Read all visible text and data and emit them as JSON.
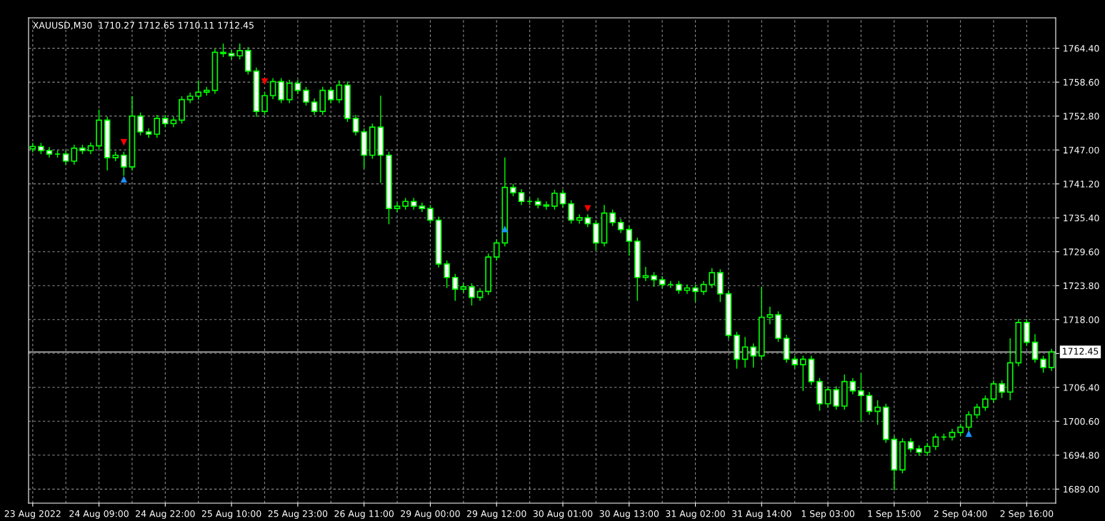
{
  "chart_data": {
    "type": "candlestick",
    "title": "XAUUSD,M30  1710.27 1712.65 1710.11 1712.45",
    "categories": [
      "23 Aug 2022",
      null,
      null,
      null,
      null,
      null,
      null,
      null,
      "24 Aug 09:00",
      null,
      null,
      null,
      null,
      null,
      null,
      null,
      "24 Aug 22:00",
      null,
      null,
      null,
      null,
      null,
      null,
      null,
      "25 Aug 10:00",
      null,
      null,
      null,
      null,
      null,
      null,
      null,
      "25 Aug 23:00",
      null,
      null,
      null,
      null,
      null,
      null,
      null,
      "26 Aug 11:00",
      null,
      null,
      null,
      null,
      null,
      null,
      null,
      "29 Aug 00:00",
      null,
      null,
      null,
      null,
      null,
      null,
      null,
      "29 Aug 12:00",
      null,
      null,
      null,
      null,
      null,
      null,
      null,
      "30 Aug 01:00",
      null,
      null,
      null,
      null,
      null,
      null,
      null,
      "30 Aug 13:00",
      null,
      null,
      null,
      null,
      null,
      null,
      null,
      "31 Aug 02:00",
      null,
      null,
      null,
      null,
      null,
      null,
      null,
      "31 Aug 14:00",
      null,
      null,
      null,
      null,
      null,
      null,
      null,
      "1 Sep 03:00",
      null,
      null,
      null,
      null,
      null,
      null,
      null,
      "1 Sep 15:00",
      null,
      null,
      null,
      null,
      null,
      null,
      null,
      "2 Sep 04:00",
      null,
      null,
      null,
      null,
      null,
      null,
      null,
      "2 Sep 16:00",
      null,
      null,
      null
    ],
    "series": [
      {
        "color": "#00ff00",
        "ohlc": [
          [
            1747.2,
            1748.2,
            1746.6,
            1747.6
          ],
          [
            1747.6,
            1748.2,
            1746.3,
            1746.9
          ],
          [
            1746.9,
            1747.5,
            1745.7,
            1746.3
          ],
          [
            1746.3,
            1746.9,
            1745.7,
            1746.3
          ],
          [
            1746.3,
            1746.9,
            1744.5,
            1745.1
          ],
          [
            1745.1,
            1747.9,
            1744.5,
            1747.3
          ],
          [
            1747.3,
            1747.9,
            1746.3,
            1746.9
          ],
          [
            1746.9,
            1748.3,
            1746.3,
            1747.7
          ],
          [
            1747.7,
            1753.9,
            1747.1,
            1752.1
          ],
          [
            1752.1,
            1752.7,
            1743.5,
            1745.7
          ],
          [
            1745.7,
            1746.7,
            1745.1,
            1746.1
          ],
          [
            1746.1,
            1746.7,
            1742.6,
            1744.1
          ],
          [
            1744.1,
            1756.2,
            1743.5,
            1752.8
          ],
          [
            1752.8,
            1753.4,
            1749.5,
            1750.1
          ],
          [
            1750.1,
            1750.7,
            1749.1,
            1749.7
          ],
          [
            1749.7,
            1753.0,
            1749.1,
            1752.4
          ],
          [
            1752.4,
            1753.0,
            1750.9,
            1751.5
          ],
          [
            1751.5,
            1752.7,
            1750.9,
            1752.1
          ],
          [
            1752.1,
            1756.2,
            1751.5,
            1755.6
          ],
          [
            1755.6,
            1756.8,
            1755.0,
            1756.2
          ],
          [
            1756.2,
            1758.9,
            1755.6,
            1756.9
          ],
          [
            1756.9,
            1757.8,
            1756.3,
            1757.2
          ],
          [
            1757.2,
            1764.3,
            1756.6,
            1763.7
          ],
          [
            1763.7,
            1765.2,
            1762.9,
            1763.5
          ],
          [
            1763.5,
            1764.1,
            1762.5,
            1763.1
          ],
          [
            1763.1,
            1765.2,
            1762.5,
            1764.0
          ],
          [
            1764.0,
            1764.6,
            1759.9,
            1760.5
          ],
          [
            1760.5,
            1761.1,
            1752.7,
            1753.6
          ],
          [
            1753.6,
            1756.9,
            1753.0,
            1756.3
          ],
          [
            1756.3,
            1759.3,
            1755.7,
            1758.7
          ],
          [
            1758.7,
            1759.3,
            1755.0,
            1755.6
          ],
          [
            1755.6,
            1759.0,
            1755.0,
            1758.4
          ],
          [
            1758.4,
            1759.0,
            1756.6,
            1757.2
          ],
          [
            1757.2,
            1757.8,
            1754.6,
            1755.2
          ],
          [
            1755.2,
            1755.8,
            1753.0,
            1753.6
          ],
          [
            1753.6,
            1757.8,
            1753.0,
            1757.2
          ],
          [
            1757.2,
            1757.8,
            1755.0,
            1755.6
          ],
          [
            1755.6,
            1758.9,
            1755.0,
            1758.1
          ],
          [
            1758.1,
            1758.7,
            1751.8,
            1752.4
          ],
          [
            1752.4,
            1753.0,
            1749.5,
            1750.1
          ],
          [
            1750.1,
            1750.7,
            1743.8,
            1746.1
          ],
          [
            1746.1,
            1751.5,
            1745.5,
            1750.9
          ],
          [
            1750.9,
            1756.3,
            1741.4,
            1746.1
          ],
          [
            1746.1,
            1746.7,
            1734.3,
            1737.0
          ],
          [
            1737.0,
            1738.0,
            1736.4,
            1737.4
          ],
          [
            1737.4,
            1738.8,
            1736.8,
            1738.2
          ],
          [
            1738.2,
            1738.8,
            1736.8,
            1737.4
          ],
          [
            1737.4,
            1738.0,
            1736.4,
            1737.0
          ],
          [
            1737.0,
            1737.6,
            1734.4,
            1735.0
          ],
          [
            1735.0,
            1735.6,
            1726.9,
            1727.5
          ],
          [
            1727.5,
            1728.1,
            1723.4,
            1725.2
          ],
          [
            1725.2,
            1725.8,
            1721.2,
            1723.2
          ],
          [
            1723.2,
            1724.2,
            1722.6,
            1723.6
          ],
          [
            1723.6,
            1724.2,
            1720.4,
            1721.8
          ],
          [
            1721.8,
            1723.4,
            1721.2,
            1722.8
          ],
          [
            1722.8,
            1729.3,
            1722.2,
            1728.7
          ],
          [
            1728.7,
            1731.7,
            1728.1,
            1731.1
          ],
          [
            1731.1,
            1745.7,
            1730.5,
            1740.6
          ],
          [
            1740.6,
            1741.2,
            1739.1,
            1739.7
          ],
          [
            1739.7,
            1740.3,
            1737.6,
            1738.2
          ],
          [
            1738.2,
            1738.8,
            1737.6,
            1738.2
          ],
          [
            1738.2,
            1738.8,
            1737.0,
            1737.6
          ],
          [
            1737.6,
            1738.2,
            1736.8,
            1737.4
          ],
          [
            1737.4,
            1740.2,
            1736.8,
            1739.6
          ],
          [
            1739.6,
            1740.2,
            1737.2,
            1737.8
          ],
          [
            1737.8,
            1738.4,
            1734.4,
            1735.0
          ],
          [
            1735.0,
            1736.0,
            1734.4,
            1735.4
          ],
          [
            1735.4,
            1736.0,
            1733.8,
            1734.4
          ],
          [
            1734.4,
            1735.0,
            1729.8,
            1731.1
          ],
          [
            1731.1,
            1737.6,
            1730.5,
            1736.2
          ],
          [
            1736.2,
            1736.8,
            1734.0,
            1734.6
          ],
          [
            1734.6,
            1735.2,
            1732.8,
            1733.4
          ],
          [
            1733.4,
            1734.0,
            1729.0,
            1731.4
          ],
          [
            1731.4,
            1732.0,
            1721.2,
            1725.2
          ],
          [
            1725.2,
            1727.0,
            1724.6,
            1725.5
          ],
          [
            1725.5,
            1726.1,
            1723.6,
            1724.8
          ],
          [
            1724.8,
            1725.4,
            1723.4,
            1724.0
          ],
          [
            1724.0,
            1724.6,
            1723.4,
            1724.0
          ],
          [
            1724.0,
            1724.6,
            1722.4,
            1723.0
          ],
          [
            1723.0,
            1724.0,
            1722.4,
            1723.4
          ],
          [
            1723.4,
            1724.0,
            1721.0,
            1722.8
          ],
          [
            1722.8,
            1724.6,
            1722.2,
            1724.0
          ],
          [
            1724.0,
            1726.8,
            1723.4,
            1726.0
          ],
          [
            1726.0,
            1726.6,
            1721.0,
            1722.4
          ],
          [
            1722.4,
            1723.0,
            1714.7,
            1715.3
          ],
          [
            1715.3,
            1715.9,
            1709.6,
            1711.2
          ],
          [
            1711.2,
            1715.0,
            1709.8,
            1713.3
          ],
          [
            1713.3,
            1713.9,
            1709.8,
            1711.8
          ],
          [
            1711.8,
            1723.6,
            1711.2,
            1718.4
          ],
          [
            1718.4,
            1720.2,
            1717.2,
            1718.8
          ],
          [
            1718.8,
            1719.4,
            1714.2,
            1714.8
          ],
          [
            1714.8,
            1715.4,
            1710.6,
            1711.2
          ],
          [
            1711.2,
            1711.8,
            1709.7,
            1710.3
          ],
          [
            1710.3,
            1711.8,
            1705.8,
            1711.2
          ],
          [
            1711.2,
            1711.8,
            1706.8,
            1707.4
          ],
          [
            1707.4,
            1708.0,
            1702.4,
            1703.6
          ],
          [
            1703.6,
            1706.6,
            1703.0,
            1706.0
          ],
          [
            1706.0,
            1706.6,
            1702.6,
            1703.2
          ],
          [
            1703.2,
            1708.6,
            1702.6,
            1707.4
          ],
          [
            1707.4,
            1708.0,
            1705.2,
            1705.8
          ],
          [
            1705.8,
            1708.8,
            1700.6,
            1705.0
          ],
          [
            1705.0,
            1705.6,
            1701.7,
            1702.3
          ],
          [
            1702.3,
            1704.2,
            1700.0,
            1703.0
          ],
          [
            1703.0,
            1703.6,
            1696.9,
            1697.5
          ],
          [
            1697.5,
            1698.1,
            1688.8,
            1692.3
          ],
          [
            1692.3,
            1697.7,
            1691.7,
            1697.1
          ],
          [
            1697.1,
            1697.7,
            1695.3,
            1695.9
          ],
          [
            1695.9,
            1696.5,
            1694.7,
            1695.3
          ],
          [
            1695.3,
            1696.9,
            1694.7,
            1696.3
          ],
          [
            1696.3,
            1698.5,
            1695.7,
            1697.9
          ],
          [
            1697.9,
            1698.5,
            1697.3,
            1697.9
          ],
          [
            1697.9,
            1699.3,
            1697.3,
            1698.7
          ],
          [
            1698.7,
            1700.2,
            1698.1,
            1699.6
          ],
          [
            1699.6,
            1702.3,
            1699.0,
            1701.7
          ],
          [
            1701.7,
            1703.6,
            1701.1,
            1703.0
          ],
          [
            1703.0,
            1705.0,
            1702.4,
            1704.4
          ],
          [
            1704.4,
            1707.6,
            1703.8,
            1707.0
          ],
          [
            1707.0,
            1707.6,
            1704.6,
            1705.6
          ],
          [
            1705.6,
            1714.8,
            1704.2,
            1710.6
          ],
          [
            1710.6,
            1718.1,
            1710.0,
            1717.5
          ],
          [
            1717.5,
            1718.1,
            1713.5,
            1714.1
          ],
          [
            1714.1,
            1715.5,
            1710.6,
            1711.2
          ],
          [
            1711.2,
            1711.8,
            1708.9,
            1709.8
          ],
          [
            1709.8,
            1713.0,
            1709.2,
            1712.45
          ]
        ]
      },
      {
        "type": "scatter",
        "marker": "triangle_down",
        "color": "#ff0000",
        "values": [
          null,
          null,
          null,
          null,
          null,
          null,
          null,
          null,
          null,
          null,
          null,
          1748.3,
          null,
          null,
          null,
          null,
          null,
          null,
          null,
          null,
          null,
          null,
          null,
          null,
          null,
          null,
          null,
          null,
          1758.7,
          null,
          null,
          null,
          null,
          null,
          null,
          null,
          null,
          null,
          null,
          null,
          null,
          null,
          null,
          null,
          null,
          null,
          null,
          null,
          null,
          null,
          null,
          null,
          null,
          null,
          null,
          null,
          null,
          null,
          null,
          null,
          null,
          null,
          null,
          null,
          null,
          null,
          null,
          1737.0,
          null,
          null,
          null,
          null,
          null,
          null,
          null,
          null,
          null,
          null,
          null,
          null,
          null,
          null,
          null,
          null,
          null,
          null,
          null,
          null,
          null,
          null,
          null,
          null,
          null,
          null,
          null,
          null,
          null,
          null,
          null,
          null,
          null,
          null,
          null,
          null,
          null,
          null,
          null,
          null,
          null,
          null,
          null,
          null,
          null,
          null,
          null,
          null,
          null,
          null,
          null,
          null,
          null,
          null,
          null,
          null
        ]
      },
      {
        "type": "scatter",
        "marker": "triangle",
        "color": "#1e90ff",
        "values": [
          null,
          null,
          null,
          null,
          null,
          null,
          null,
          null,
          null,
          null,
          null,
          1742.0,
          null,
          null,
          null,
          null,
          null,
          null,
          null,
          null,
          null,
          null,
          null,
          null,
          null,
          null,
          null,
          null,
          null,
          null,
          null,
          null,
          null,
          null,
          null,
          null,
          null,
          null,
          null,
          null,
          null,
          null,
          null,
          null,
          null,
          null,
          null,
          null,
          null,
          null,
          null,
          null,
          null,
          null,
          null,
          null,
          null,
          1733.5,
          null,
          null,
          null,
          null,
          null,
          null,
          null,
          null,
          null,
          null,
          null,
          null,
          null,
          null,
          null,
          null,
          null,
          null,
          null,
          null,
          null,
          null,
          null,
          null,
          null,
          null,
          null,
          null,
          null,
          null,
          null,
          null,
          null,
          null,
          null,
          null,
          null,
          null,
          null,
          null,
          null,
          null,
          null,
          null,
          null,
          null,
          null,
          null,
          null,
          null,
          null,
          null,
          null,
          null,
          null,
          1698.5,
          null,
          null,
          null,
          null,
          null,
          null,
          null,
          null,
          null,
          null
        ]
      }
    ],
    "ylim": [
      1686.6,
      1769.6
    ],
    "yticks": [
      {
        "value": 1689.0,
        "label": "1689.00"
      },
      {
        "value": 1694.8,
        "label": "1694.80"
      },
      {
        "value": 1700.6,
        "label": "1700.60"
      },
      {
        "value": 1706.4,
        "label": "1706.40"
      },
      {
        "value": 1712.2,
        "label": null
      },
      {
        "value": 1718.0,
        "label": "1718.00"
      },
      {
        "value": 1723.8,
        "label": "1723.80"
      },
      {
        "value": 1729.6,
        "label": "1729.60"
      },
      {
        "value": 1735.4,
        "label": "1735.40"
      },
      {
        "value": 1741.2,
        "label": "1741.20"
      },
      {
        "value": 1747.0,
        "label": "1747.00"
      },
      {
        "value": 1752.8,
        "label": "1752.80"
      },
      {
        "value": 1758.6,
        "label": "1758.60"
      },
      {
        "value": 1764.4,
        "label": "1764.40"
      }
    ],
    "ref_lines": [
      {
        "axis": "y",
        "value": 1712.45,
        "label": "1712.45",
        "color": "#c0c0c0"
      }
    ],
    "grid": true
  }
}
